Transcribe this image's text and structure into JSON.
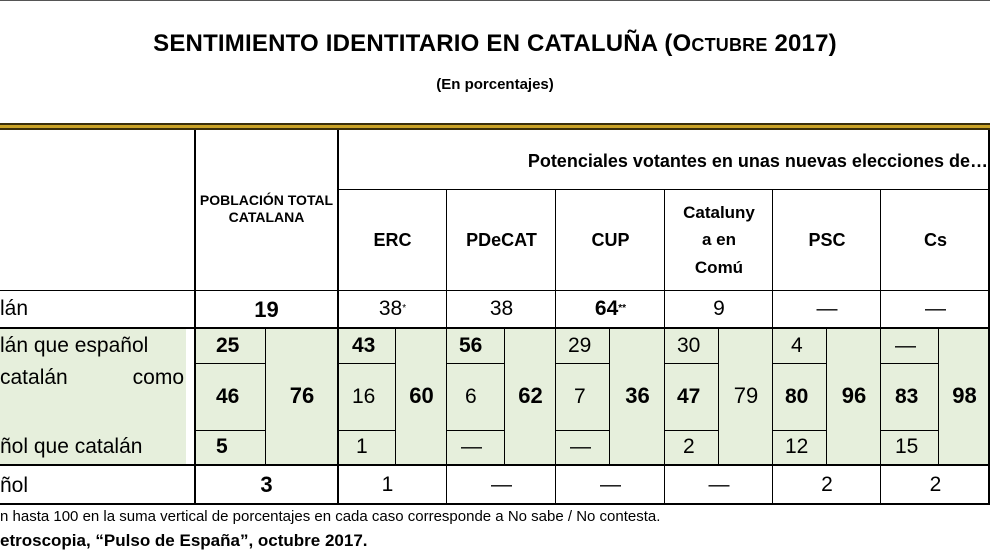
{
  "title": {
    "main": "SENTIMIENTO IDENTITARIO EN CATALUÑA (",
    "month_initial": "O",
    "month_rest": "CTUBRE",
    "year_close": " 2017)"
  },
  "subtitle": "(En porcentajes)",
  "header": {
    "poblacion": "POBLACIÓN TOTAL CATALANA",
    "potenciales": "Potenciales votantes en unas nuevas elecciones de…",
    "parties": [
      "ERC",
      "PDeCAT",
      "CUP",
      "Cataluny a en Comú",
      "PSC",
      "Cs"
    ]
  },
  "rows": [
    {
      "label": "lán",
      "total": "19",
      "parties": [
        "38",
        "38",
        "64",
        "9",
        "—",
        "—"
      ],
      "marks": [
        "*",
        "",
        "**",
        "",
        "",
        ""
      ]
    },
    {
      "label": "lán que español",
      "total": "25",
      "parties": [
        "43",
        "56",
        "29",
        "30",
        "4",
        "—"
      ]
    },
    {
      "label": "catalán como",
      "total": "46",
      "parties": [
        "16",
        "6",
        "7",
        "47",
        "80",
        "83"
      ]
    },
    {
      "label": "ñol que catalán",
      "total": "5",
      "parties": [
        "1",
        "—",
        "—",
        "2",
        "12",
        "15"
      ]
    },
    {
      "label": "ñol",
      "total": "3",
      "parties": [
        "1",
        "—",
        "—",
        "—",
        "2",
        "2"
      ]
    }
  ],
  "label_row2_first": "catalán",
  "label_row2_second": "como",
  "group_totals": {
    "total": "76",
    "parties": [
      "60",
      "62",
      "36",
      "79",
      "96",
      "98"
    ]
  },
  "note": "n hasta 100 en la suma vertical de porcentajes en cada caso corresponde a No sabe / No contesta.",
  "source": "etroscopia, “Pulso de España”, octubre 2017."
}
